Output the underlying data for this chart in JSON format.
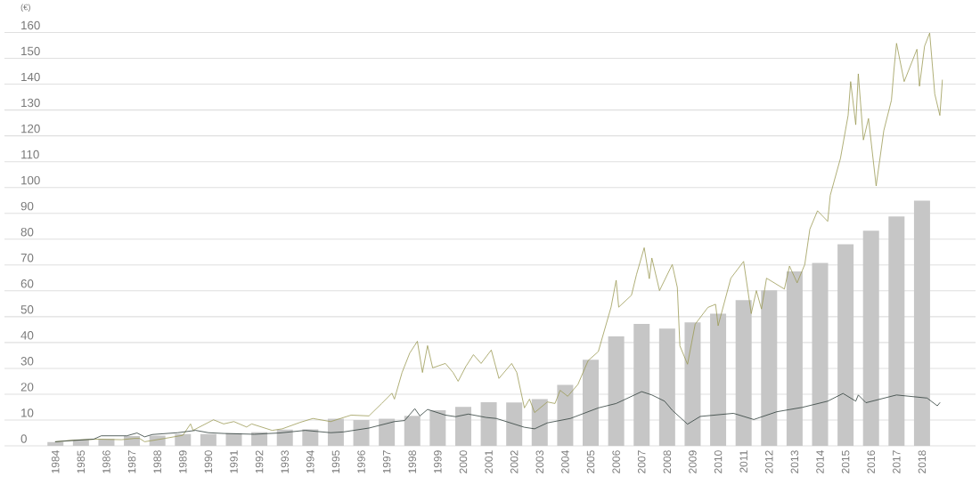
{
  "chart_data": {
    "type": "bar",
    "ylabel": "(€)",
    "x": [
      1984,
      1985,
      1986,
      1987,
      1988,
      1989,
      1990,
      1991,
      1992,
      1993,
      1994,
      1995,
      1996,
      1997,
      1998,
      1999,
      2000,
      2001,
      2002,
      2003,
      2004,
      2005,
      2006,
      2007,
      2008,
      2009,
      2010,
      2011,
      2012,
      2013,
      2014,
      2015,
      2016,
      2017,
      2018
    ],
    "xlim": [
      1982,
      2020.1
    ],
    "xticks": [
      1984,
      1985,
      1986,
      1987,
      1988,
      1989,
      1990,
      1991,
      1992,
      1993,
      1994,
      1995,
      1996,
      1997,
      1998,
      1999,
      2000,
      2001,
      2002,
      2003,
      2004,
      2005,
      2006,
      2007,
      2008,
      2009,
      2010,
      2011,
      2012,
      2013,
      2014,
      2015,
      2016,
      2017,
      2018
    ],
    "ylim": [
      0,
      160
    ],
    "yticks": [
      0,
      10,
      20,
      30,
      40,
      50,
      60,
      70,
      80,
      90,
      100,
      110,
      120,
      130,
      140,
      150,
      160
    ],
    "grid": "y",
    "marker": "none",
    "series": [
      {
        "color": "#c6c6c6",
        "values": [
          1.5,
          2.3,
          2.8,
          3.8,
          4,
          4.6,
          4.6,
          4.9,
          5.3,
          6.3,
          6.4,
          10.5,
          10,
          10.5,
          11.6,
          13.8,
          15.1,
          16.9,
          16.8,
          18.1,
          23.6,
          33.3,
          42.4,
          47.2,
          45.4,
          47.8,
          51.2,
          56.4,
          60.2,
          67.5,
          70.8,
          78,
          83.3,
          88.8,
          94.9
        ]
      },
      {
        "type": "line",
        "color": "#9c9a55",
        "x": [
          1984.0,
          1984.7,
          1985.6,
          1986.6,
          1987.1,
          1987.3,
          1987.5,
          1988.3,
          1989.0,
          1989.3,
          1989.4,
          1990.2,
          1990.6,
          1991.0,
          1991.5,
          1991.7,
          1992.5,
          1992.9,
          1993.6,
          1994.1,
          1994.8,
          1995.6,
          1996.3,
          1996.8,
          1997.2,
          1997.3,
          1997.6,
          1997.9,
          1998.2,
          1998.4,
          1998.6,
          1998.8,
          1999.3,
          1999.6,
          1999.8,
          2000.1,
          2000.4,
          2000.7,
          2001.1,
          2001.4,
          2001.9,
          2002.1,
          2002.4,
          2002.6,
          2002.8,
          2003.3,
          2003.6,
          2003.8,
          2004.1,
          2004.5,
          2004.9,
          2005.3,
          2005.5,
          2005.8,
          2006.0,
          2006.1,
          2006.6,
          2006.8,
          2007.1,
          2007.3,
          2007.4,
          2007.7,
          2008.2,
          2008.4,
          2008.5,
          2008.8,
          2009.1,
          2009.6,
          2009.9,
          2010.0,
          2010.5,
          2011.0,
          2011.3,
          2011.5,
          2011.7,
          2011.9,
          2012.6,
          2012.8,
          2013.1,
          2013.4,
          2013.6,
          2013.9,
          2014.3,
          2014.4,
          2014.8,
          2015.1,
          2015.2,
          2015.4,
          2015.5,
          2015.7,
          2015.9,
          2016.2,
          2016.5,
          2016.8,
          2016.9,
          2017.0,
          2017.3,
          2017.8,
          2017.9,
          2018.1,
          2018.3,
          2018.4,
          2018.5,
          2018.7,
          2018.8
        ],
        "values": [
          1.6,
          2.2,
          2.6,
          2.4,
          2.9,
          2.9,
          1.6,
          2.9,
          4.1,
          8.5,
          6.0,
          10.1,
          8.5,
          9.4,
          7.3,
          8.5,
          6.0,
          6.6,
          9.1,
          10.6,
          9.4,
          11.9,
          11.6,
          16.4,
          20.4,
          18.1,
          28.4,
          35.9,
          40.5,
          28.4,
          38.8,
          30.2,
          31.9,
          28.4,
          25.0,
          30.7,
          35.3,
          31.9,
          37.1,
          26.1,
          31.9,
          28.4,
          14.7,
          18.1,
          12.9,
          17.0,
          16.4,
          21.5,
          19.2,
          23.8,
          33.0,
          36.5,
          43.4,
          53.7,
          64.1,
          53.7,
          58.3,
          66.4,
          76.7,
          64.7,
          72.7,
          60.1,
          70.2,
          61.3,
          38.7,
          31.6,
          47.1,
          53.6,
          54.8,
          46.5,
          64.9,
          71.4,
          51.2,
          60.1,
          53.0,
          64.9,
          60.7,
          69.6,
          63.1,
          70.2,
          83.9,
          91.0,
          86.9,
          97.0,
          111.3,
          127.9,
          141.0,
          124.3,
          144.0,
          118.4,
          126.7,
          100.6,
          122.0,
          133.8,
          145.7,
          155.8,
          141.0,
          153.5,
          139.2,
          154.7,
          159.8,
          148.1,
          136.2,
          127.9,
          141.6
        ]
      },
      {
        "type": "line",
        "color": "#2f3e3a",
        "x": [
          1984.0,
          1984.7,
          1985.5,
          1985.8,
          1986.8,
          1987.2,
          1987.5,
          1987.8,
          1988.8,
          1989.5,
          1990.0,
          1990.6,
          1991.8,
          1992.8,
          1993.8,
          1994.8,
          1995.3,
          1996.3,
          1997.3,
          1997.7,
          1998.1,
          1998.3,
          1998.6,
          1999.3,
          1999.7,
          2000.2,
          2000.9,
          2001.3,
          2002.4,
          2002.8,
          2003.3,
          2004.2,
          2005.3,
          2006.0,
          2007.0,
          2007.4,
          2007.9,
          2008.2,
          2008.8,
          2009.3,
          2010.6,
          2011.4,
          2012.3,
          2013.3,
          2014.3,
          2014.9,
          2015.4,
          2015.5,
          2015.8,
          2017.0,
          2018.2,
          2018.6,
          2018.7
        ],
        "values": [
          1.6,
          2.1,
          2.6,
          3.9,
          3.9,
          5.0,
          3.5,
          4.4,
          5.1,
          6.0,
          5.1,
          4.8,
          4.5,
          5.0,
          6.0,
          5.1,
          5.4,
          6.9,
          9.4,
          9.8,
          14.4,
          11.6,
          14.1,
          11.9,
          11.3,
          12.3,
          11.0,
          10.6,
          7.2,
          6.6,
          8.9,
          10.6,
          14.7,
          16.4,
          21.0,
          19.7,
          17.3,
          13.8,
          8.4,
          11.4,
          12.6,
          10.2,
          13.2,
          14.9,
          17.3,
          20.3,
          17.3,
          19.7,
          16.7,
          19.7,
          18.5,
          15.5,
          16.7
        ]
      }
    ]
  }
}
